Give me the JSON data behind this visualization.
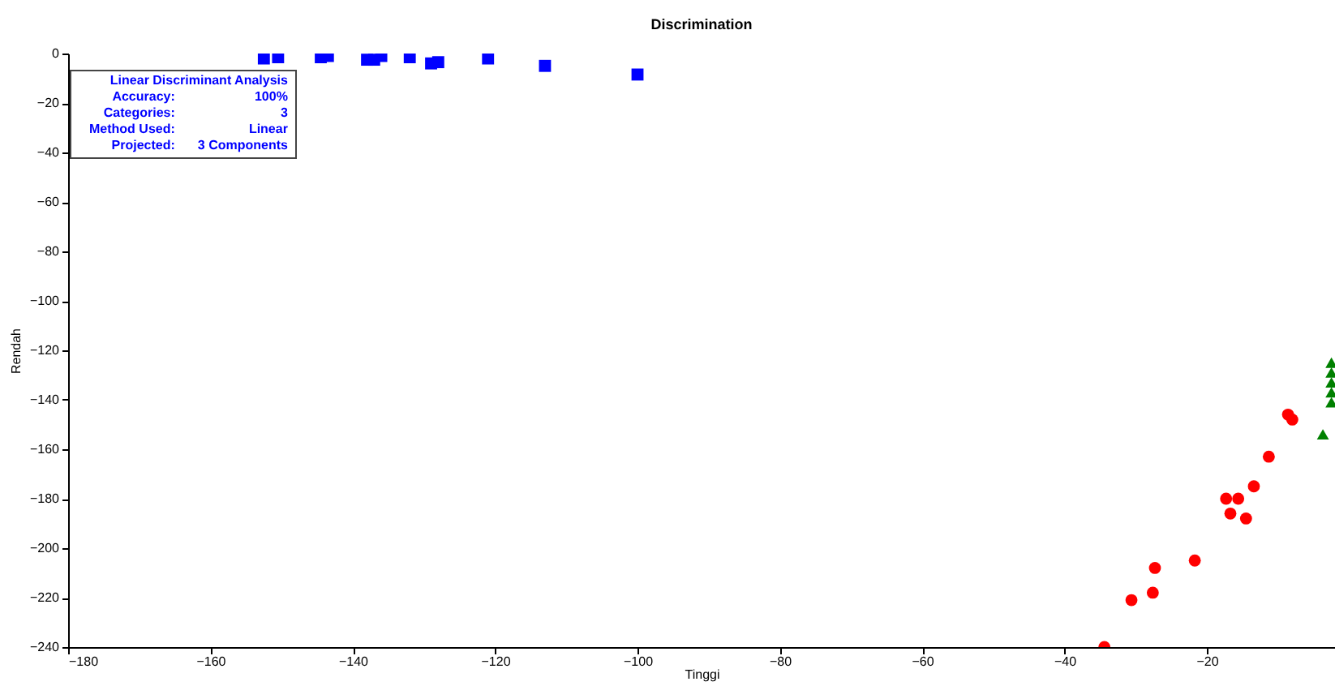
{
  "chart_data": {
    "type": "scatter",
    "title": "Discrimination",
    "xlabel": "Tinggi",
    "ylabel": "Rendah",
    "xlim": [
      -180,
      -2
    ],
    "xticks": [
      -180,
      -160,
      -140,
      -120,
      -100,
      -80,
      -60,
      -40,
      -20
    ],
    "ylim": [
      -240,
      0
    ],
    "yticks": [
      -240,
      -220,
      -200,
      -180,
      -160,
      -140,
      -120,
      -100,
      -80,
      -60,
      -40,
      -20,
      0
    ],
    "grid": false,
    "legend": false,
    "annotations": [
      "Linear Discriminant Analysis",
      "Accuracy: 100%",
      "Categories: 3",
      "Method Used: Linear",
      "Projected: 3 Components"
    ],
    "series": [
      {
        "color": "#0000ff",
        "marker": "square",
        "x": [
          -152.5,
          -150.5,
          -144.5,
          -143.5,
          -138,
          -137,
          -136,
          -132,
          -129,
          -128,
          -121,
          -113,
          -100
        ],
        "values": [
          -2,
          -1.5,
          -1.5,
          -1,
          -2.5,
          -2.5,
          -1,
          -1.5,
          -4,
          -3.5,
          -2,
          -5,
          -8.5
        ]
      },
      {
        "color": "#ff0000",
        "marker": "circle",
        "x": [
          -8.6,
          -8,
          -11.3,
          -13.4,
          -17.3,
          -15.6,
          -16.7,
          -14.5,
          -21.7,
          -27.3,
          -27.6,
          -30.6,
          -34.4
        ],
        "values": [
          -146,
          -148,
          -163,
          -175,
          -180,
          -180,
          -186,
          -188,
          -205,
          -208,
          -218,
          -221,
          -240
        ]
      },
      {
        "color": "#008000",
        "marker": "triangle",
        "x": [
          -3.7,
          -2.5,
          -2.5,
          -2.5,
          -2.5,
          -2.5
        ],
        "values": [
          -154,
          -125,
          -129,
          -133,
          -137,
          -141
        ]
      }
    ]
  }
}
